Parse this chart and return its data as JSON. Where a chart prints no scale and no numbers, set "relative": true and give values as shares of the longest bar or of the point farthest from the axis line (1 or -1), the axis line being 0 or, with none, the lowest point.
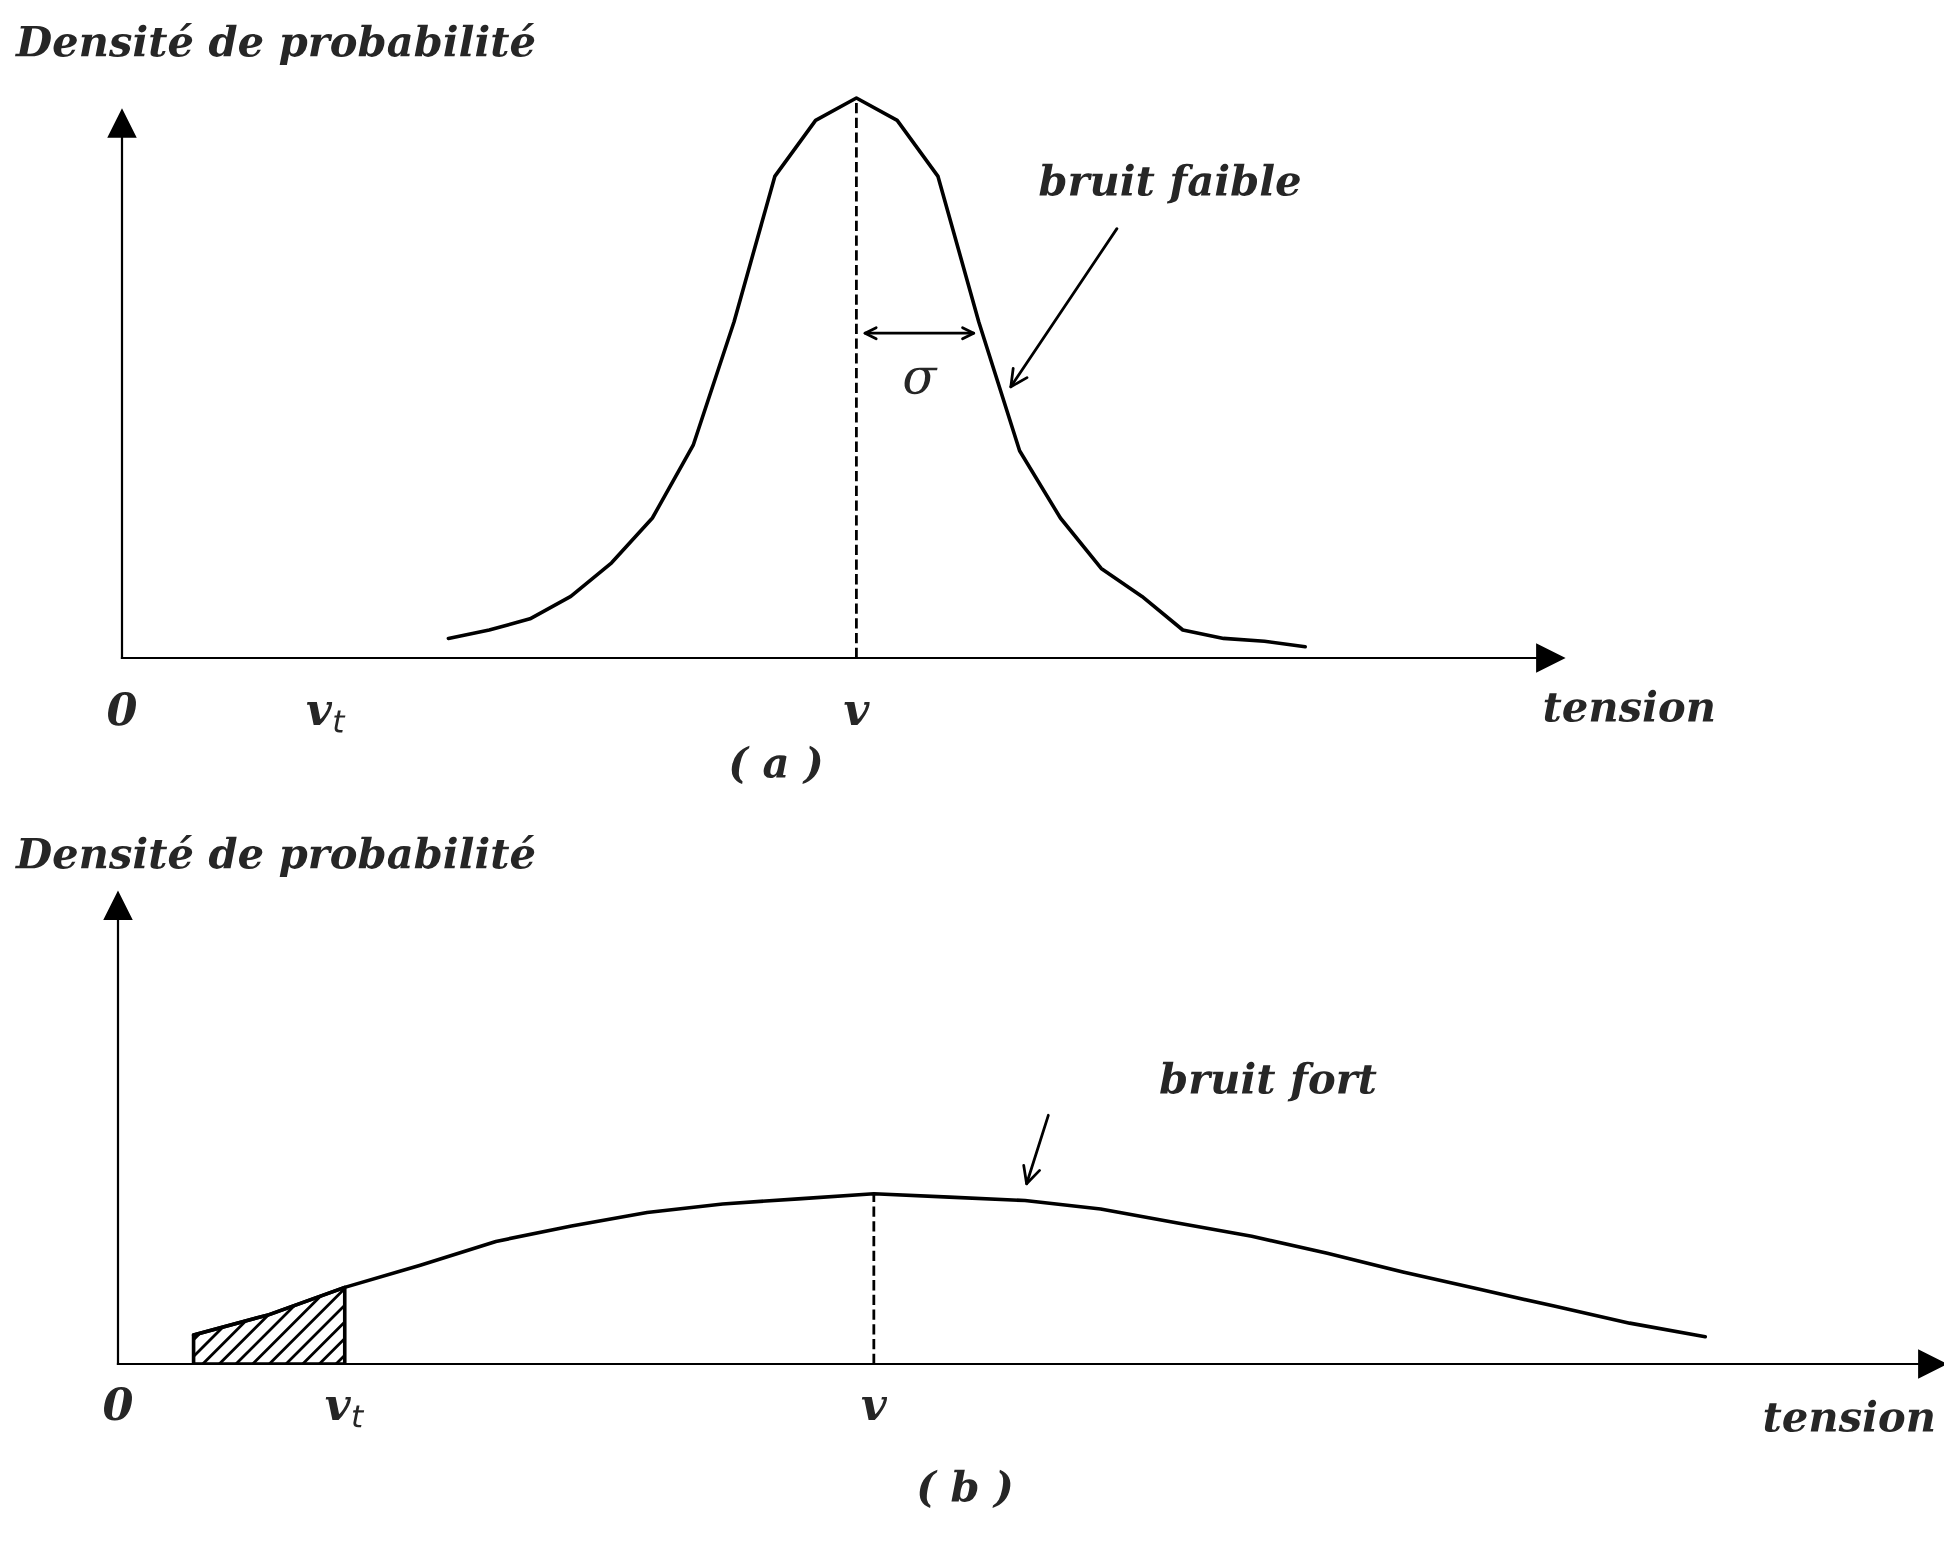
{
  "chart_data": [
    {
      "type": "line",
      "relative": true,
      "ylabel": "Densité de probabilité",
      "xlabel": "tension",
      "categories": [
        "0",
        null,
        null,
        null,
        null,
        "v$_{t}$",
        null,
        null,
        null,
        null,
        null,
        null,
        null,
        null,
        null,
        null,
        null,
        null,
        "v",
        null,
        null,
        null,
        null,
        null,
        null,
        null,
        null,
        null,
        null,
        null,
        null,
        null,
        null,
        null,
        null,
        null
      ],
      "series": [
        {
          "color": "#000000",
          "values": [
            null,
            null,
            null,
            null,
            null,
            null,
            null,
            null,
            0.035,
            0.05,
            0.07,
            0.11,
            0.17,
            0.25,
            0.38,
            0.6,
            0.86,
            0.96,
            1.0,
            0.96,
            0.86,
            0.6,
            0.37,
            0.25,
            0.16,
            0.11,
            0.05,
            0.035,
            0.03,
            0.02,
            null,
            null,
            null,
            null,
            null,
            null
          ]
        }
      ],
      "ref_lines": [
        {
          "axis": "x",
          "value": "v",
          "line_style": "dashed",
          "color": "#000000"
        }
      ],
      "annotations": [
        "bruit faible",
        "σ",
        "( a )"
      ],
      "marker": "none",
      "line_style": "solid"
    },
    {
      "type": "line",
      "relative": true,
      "ylabel": "Densité de probabilité",
      "xlabel": "tension",
      "categories": [
        "0",
        null,
        null,
        "v$_{t}$",
        null,
        null,
        null,
        null,
        null,
        null,
        "v",
        null,
        null,
        null,
        null,
        null,
        null,
        null,
        null,
        null,
        null,
        null,
        null,
        null,
        null
      ],
      "series": [
        {
          "color": "#000000",
          "values": [
            null,
            0.17,
            0.29,
            0.45,
            0.58,
            0.72,
            0.81,
            0.89,
            0.94,
            0.97,
            1.0,
            0.98,
            0.96,
            0.91,
            0.83,
            0.75,
            0.65,
            0.54,
            0.44,
            0.34,
            0.24,
            0.16,
            null,
            null,
            null
          ]
        },
        {
          "type": "area",
          "color": "#000000",
          "values": [
            null,
            0.17,
            0.29,
            0.45,
            null,
            null,
            null,
            null,
            null,
            null,
            null,
            null,
            null,
            null,
            null,
            null,
            null,
            null,
            null,
            null,
            null,
            null,
            null,
            null,
            null
          ]
        }
      ],
      "ref_lines": [
        {
          "axis": "x",
          "value": "v",
          "line_style": "dashed",
          "color": "#000000"
        }
      ],
      "annotations": [
        "bruit fort",
        "( b )"
      ],
      "marker": "none",
      "line_style": "solid"
    }
  ]
}
